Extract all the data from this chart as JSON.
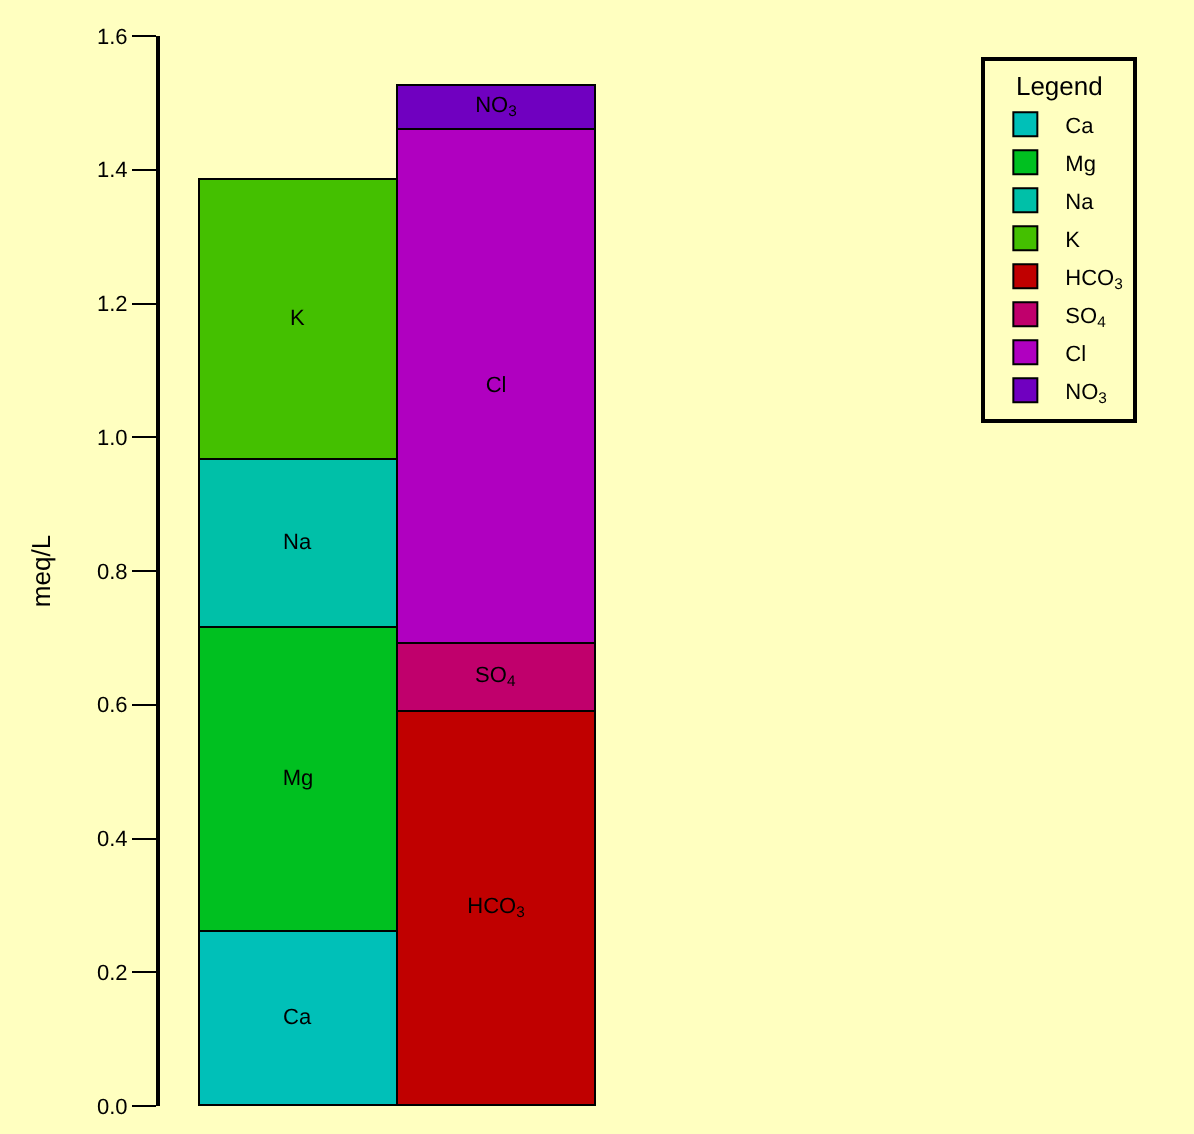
{
  "chart_data": {
    "type": "bar",
    "stacked": true,
    "ylabel": "meq/L",
    "categories": [
      null,
      null
    ],
    "series": [
      {
        "name": "Ca",
        "color": "#00c0b8",
        "values": [
          0.26,
          null
        ]
      },
      {
        "name": "Mg",
        "color": "#00c020",
        "values": [
          0.455,
          null
        ]
      },
      {
        "name": "Na",
        "color": "#00c0a8",
        "values": [
          0.25,
          null
        ]
      },
      {
        "name": "K",
        "color": "#44c000",
        "values": [
          0.42,
          null
        ]
      },
      {
        "name": "HCO$_{3}$",
        "color": "#c00000",
        "values": [
          null,
          0.59
        ]
      },
      {
        "name": "SO$_{4}$",
        "color": "#c0006c",
        "values": [
          null,
          0.1
        ]
      },
      {
        "name": "Cl",
        "color": "#b000c0",
        "values": [
          null,
          0.77
        ]
      },
      {
        "name": "NO$_{3}$",
        "color": "#7000c0",
        "values": [
          null,
          0.065
        ]
      }
    ],
    "ylim": [
      0,
      1.6
    ],
    "yticks": [
      {
        "value": 0,
        "label": "0.0"
      },
      {
        "value": 0.2,
        "label": "0.2"
      },
      {
        "value": 0.4,
        "label": "0.4"
      },
      {
        "value": 0.6,
        "label": "0.6"
      },
      {
        "value": 0.8,
        "label": "0.8"
      },
      {
        "value": 1,
        "label": "1.0"
      },
      {
        "value": 1.2,
        "label": "1.2"
      },
      {
        "value": 1.4,
        "label": "1.4"
      },
      {
        "value": 1.6,
        "label": "1.6"
      }
    ],
    "grid": false,
    "legend": "top right",
    "legend_title": "Legend"
  }
}
